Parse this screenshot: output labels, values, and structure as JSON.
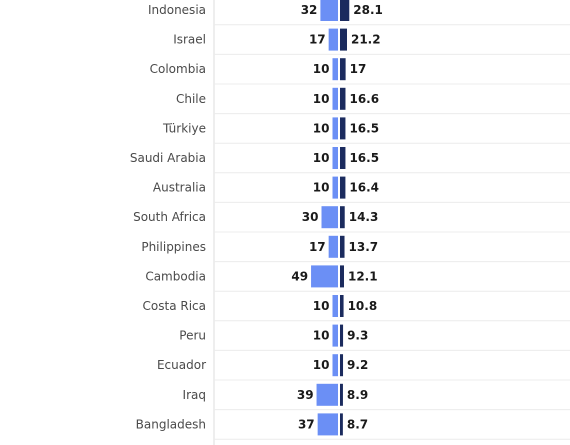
{
  "chart_data": {
    "type": "bar",
    "categories": [
      "Indonesia",
      "Israel",
      "Colombia",
      "Chile",
      "Türkiye",
      "Saudi Arabia",
      "Australia",
      "South Africa",
      "Philippines",
      "Cambodia",
      "Costa Rica",
      "Peru",
      "Ecuador",
      "Iraq",
      "Bangladesh"
    ],
    "series": [
      {
        "color": "#6b8ff5",
        "direction": "left",
        "values": [
          32,
          17,
          10,
          10,
          10,
          10,
          10,
          30,
          17,
          49,
          10,
          10,
          10,
          39,
          37
        ]
      },
      {
        "color": "#1b2b5e",
        "direction": "right",
        "values": [
          28.1,
          21.2,
          17,
          16.6,
          16.5,
          16.5,
          16.4,
          14.3,
          13.7,
          12.1,
          10.8,
          9.3,
          9.2,
          8.9,
          8.7
        ]
      }
    ],
    "value_labels": [
      [
        "32",
        "28.1"
      ],
      [
        "17",
        "21.2"
      ],
      [
        "10",
        "17"
      ],
      [
        "10",
        "16.6"
      ],
      [
        "10",
        "16.5"
      ],
      [
        "10",
        "16.5"
      ],
      [
        "10",
        "16.4"
      ],
      [
        "30",
        "14.3"
      ],
      [
        "17",
        "13.7"
      ],
      [
        "49",
        "12.1"
      ],
      [
        "10",
        "10.8"
      ],
      [
        "10",
        "9.3"
      ],
      [
        "10",
        "9.2"
      ],
      [
        "39",
        "8.9"
      ],
      [
        "37",
        "8.7"
      ]
    ],
    "grid": true,
    "legend": "none"
  }
}
